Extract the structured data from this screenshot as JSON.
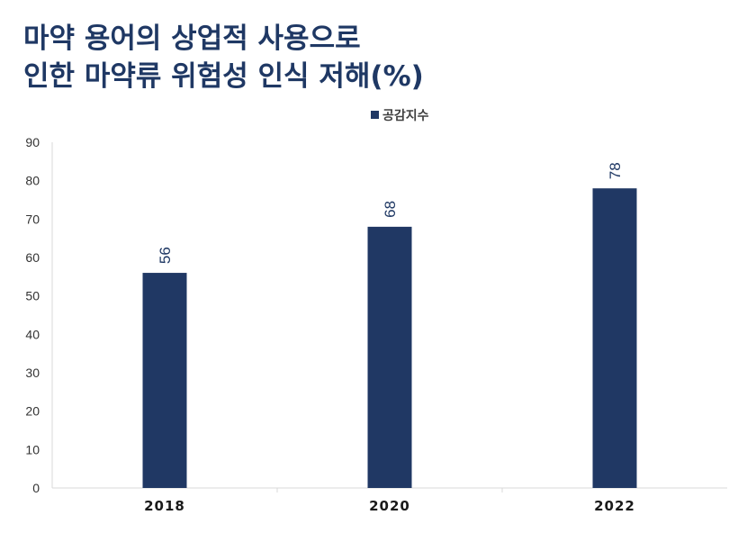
{
  "chart_data": {
    "type": "bar",
    "title_lines": [
      "마약 용어의 상업적 사용으로",
      "인한 마약류 위험성 인식 저해(%)"
    ],
    "categories": [
      "2018",
      "2020",
      "2022"
    ],
    "series": [
      {
        "name": "공감지수",
        "values": [
          56,
          68,
          78
        ]
      }
    ],
    "ylim": [
      0,
      90
    ],
    "yticks": [
      "0",
      "10",
      "20",
      "30",
      "40",
      "50",
      "60",
      "70",
      "80",
      "90"
    ],
    "legend_position": "top",
    "colors": {
      "bar": "#203864",
      "title": "#1f3864",
      "axis": "#d9d9d9"
    }
  }
}
